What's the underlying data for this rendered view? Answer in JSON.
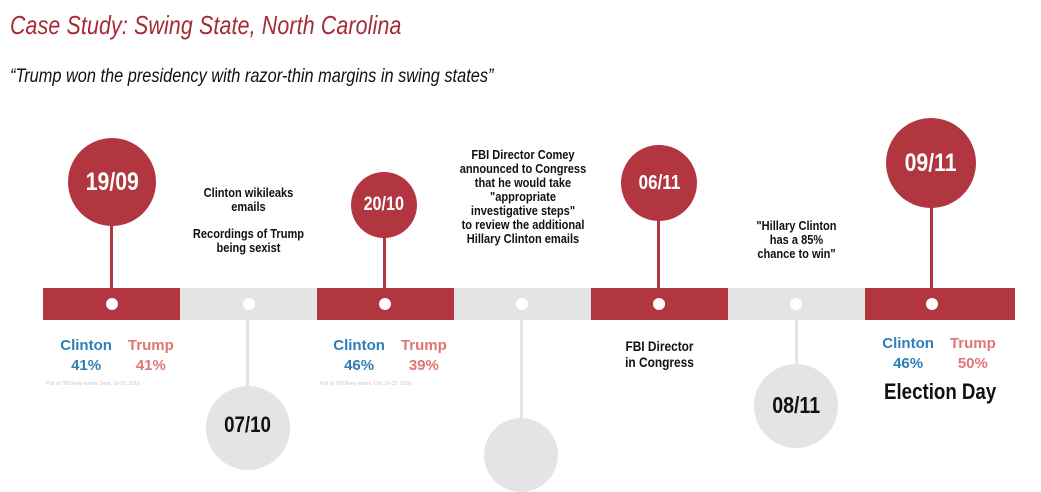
{
  "header": {
    "title": "Case Study: Swing State, North Carolina",
    "quote": "“Trump won the presidency with razor-thin margins in swing states”"
  },
  "events": {
    "e1": {
      "date": "19/09"
    },
    "e2": {
      "date": "07/10",
      "line1": "Clinton wikileaks",
      "line2": "emails",
      "line3": "Recordings of Trump",
      "line4": "being sexist"
    },
    "e3": {
      "date": "20/10"
    },
    "e4": {
      "lines": [
        "FBI Director Comey",
        "announced to Congress",
        "that he would take",
        "\"appropriate",
        "investigative steps\"",
        "to review the additional",
        "Hillary Clinton emails"
      ]
    },
    "e5": {
      "date": "06/11",
      "line1": "FBI Director",
      "line2": "in Congress"
    },
    "e6": {
      "date": "08/11",
      "line1": "\"Hillary Clinton",
      "line2": "has a 85%",
      "line3": "chance to win\""
    },
    "e7": {
      "date": "09/11",
      "label": "Election Day"
    }
  },
  "polls": {
    "p1": {
      "clinton_label": "Clinton",
      "clinton_value": "41%",
      "trump_label": "Trump",
      "trump_value": "41%",
      "source": "Poll of 782 likely voters. Sept. 16-19, 2016"
    },
    "p2": {
      "clinton_label": "Clinton",
      "clinton_value": "46%",
      "trump_label": "Trump",
      "trump_value": "39%",
      "source": "Poll of 792 likely voters. Oct. 20-23, 2016"
    },
    "p3": {
      "clinton_label": "Clinton",
      "clinton_value": "46%",
      "trump_label": "Trump",
      "trump_value": "50%"
    }
  },
  "colors": {
    "accent": "#b13640",
    "gray": "#e4e4e4",
    "clinton": "#2c7fb8",
    "trump": "#e07575"
  }
}
